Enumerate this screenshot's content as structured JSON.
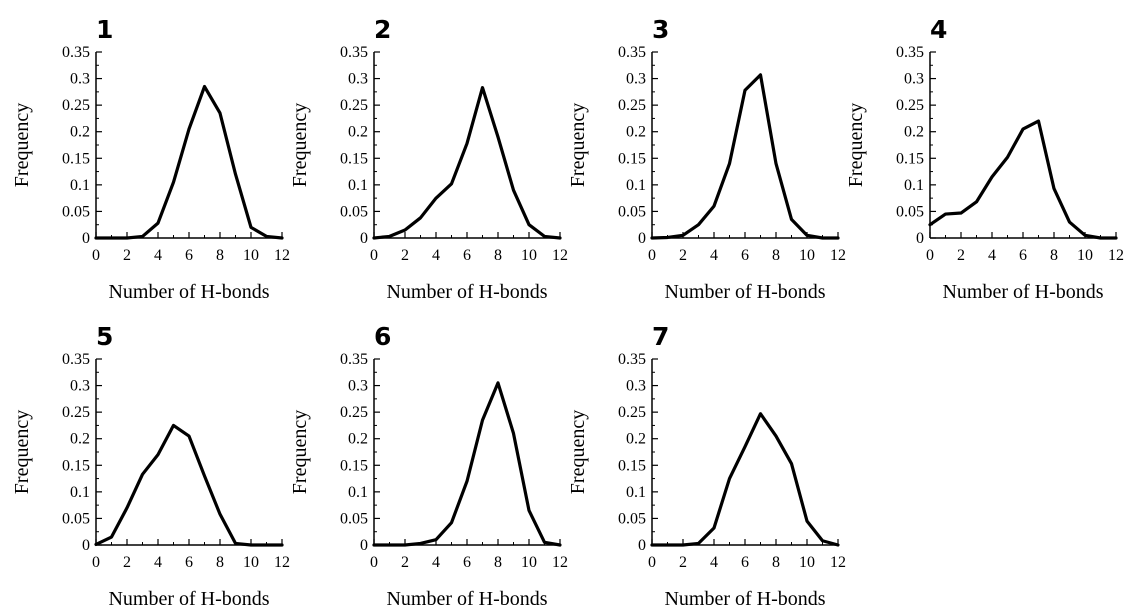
{
  "colors": {
    "line": "#000000",
    "axis": "#000000",
    "background": "#ffffff"
  },
  "chart_data": [
    {
      "type": "line",
      "title": "1",
      "xlabel": "Number of H-bonds",
      "ylabel": "Frequency",
      "xlim": [
        0,
        12
      ],
      "ylim": [
        0,
        0.35
      ],
      "xticks": [
        "0",
        "2",
        "4",
        "6",
        "8",
        "10",
        "12"
      ],
      "yticks": [
        "0",
        "0.05",
        "0.1",
        "0.15",
        "0.2",
        "0.25",
        "0.3",
        "0.35"
      ],
      "x": [
        0,
        1,
        2,
        3,
        4,
        5,
        6,
        7,
        8,
        9,
        10,
        11,
        12
      ],
      "y": [
        0,
        0,
        0,
        0.003,
        0.028,
        0.105,
        0.205,
        0.285,
        0.235,
        0.12,
        0.02,
        0.003,
        0
      ]
    },
    {
      "type": "line",
      "title": "2",
      "xlabel": "Number of H-bonds",
      "ylabel": "Frequency",
      "xlim": [
        0,
        12
      ],
      "ylim": [
        0,
        0.35
      ],
      "xticks": [
        "0",
        "2",
        "4",
        "6",
        "8",
        "10",
        "12"
      ],
      "yticks": [
        "0",
        "0.05",
        "0.1",
        "0.15",
        "0.2",
        "0.25",
        "0.3",
        "0.35"
      ],
      "x": [
        0,
        1,
        2,
        3,
        4,
        5,
        6,
        7,
        8,
        9,
        10,
        11,
        12
      ],
      "y": [
        0,
        0.003,
        0.015,
        0.038,
        0.075,
        0.102,
        0.178,
        0.283,
        0.19,
        0.09,
        0.025,
        0.003,
        0
      ]
    },
    {
      "type": "line",
      "title": "3",
      "xlabel": "Number of H-bonds",
      "ylabel": "Frequency",
      "xlim": [
        0,
        12
      ],
      "ylim": [
        0,
        0.35
      ],
      "xticks": [
        "0",
        "2",
        "4",
        "6",
        "8",
        "10",
        "12"
      ],
      "yticks": [
        "0",
        "0.05",
        "0.1",
        "0.15",
        "0.2",
        "0.25",
        "0.3",
        "0.35"
      ],
      "x": [
        0,
        1,
        2,
        3,
        4,
        5,
        6,
        7,
        8,
        9,
        10,
        11,
        12
      ],
      "y": [
        0,
        0.001,
        0.005,
        0.025,
        0.06,
        0.14,
        0.278,
        0.307,
        0.14,
        0.035,
        0.005,
        0,
        0
      ]
    },
    {
      "type": "line",
      "title": "4",
      "xlabel": "Number of H-bonds",
      "ylabel": "Frequency",
      "xlim": [
        0,
        12
      ],
      "ylim": [
        0,
        0.35
      ],
      "xticks": [
        "0",
        "2",
        "4",
        "6",
        "8",
        "10",
        "12"
      ],
      "yticks": [
        "0",
        "0.05",
        "0.1",
        "0.15",
        "0.2",
        "0.25",
        "0.3",
        "0.35"
      ],
      "x": [
        0,
        1,
        2,
        3,
        4,
        5,
        6,
        7,
        8,
        9,
        10,
        11,
        12
      ],
      "y": [
        0.025,
        0.045,
        0.047,
        0.068,
        0.115,
        0.152,
        0.205,
        0.22,
        0.093,
        0.03,
        0.005,
        0,
        0
      ]
    },
    {
      "type": "line",
      "title": "5",
      "xlabel": "Number of H-bonds",
      "ylabel": "Frequency",
      "xlim": [
        0,
        12
      ],
      "ylim": [
        0,
        0.35
      ],
      "xticks": [
        "0",
        "2",
        "4",
        "6",
        "8",
        "10",
        "12"
      ],
      "yticks": [
        "0",
        "0.05",
        "0.1",
        "0.15",
        "0.2",
        "0.25",
        "0.3",
        "0.35"
      ],
      "x": [
        0,
        1,
        2,
        3,
        4,
        5,
        6,
        7,
        8,
        9,
        10,
        11,
        12
      ],
      "y": [
        0.001,
        0.015,
        0.07,
        0.133,
        0.17,
        0.225,
        0.205,
        0.13,
        0.058,
        0.003,
        0,
        0,
        0
      ]
    },
    {
      "type": "line",
      "title": "6",
      "xlabel": "Number of H-bonds",
      "ylabel": "Frequency",
      "xlim": [
        0,
        12
      ],
      "ylim": [
        0,
        0.35
      ],
      "xticks": [
        "0",
        "2",
        "4",
        "6",
        "8",
        "10",
        "12"
      ],
      "yticks": [
        "0",
        "0.05",
        "0.1",
        "0.15",
        "0.2",
        "0.25",
        "0.3",
        "0.35"
      ],
      "x": [
        0,
        1,
        2,
        3,
        4,
        5,
        6,
        7,
        8,
        9,
        10,
        11,
        12
      ],
      "y": [
        0,
        0,
        0,
        0.003,
        0.01,
        0.042,
        0.12,
        0.235,
        0.305,
        0.21,
        0.065,
        0.005,
        0
      ]
    },
    {
      "type": "line",
      "title": "7",
      "xlabel": "Number of H-bonds",
      "ylabel": "Frequency",
      "xlim": [
        0,
        12
      ],
      "ylim": [
        0,
        0.35
      ],
      "xticks": [
        "0",
        "2",
        "4",
        "6",
        "8",
        "10",
        "12"
      ],
      "yticks": [
        "0",
        "0.05",
        "0.1",
        "0.15",
        "0.2",
        "0.25",
        "0.3",
        "0.35"
      ],
      "x": [
        0,
        1,
        2,
        3,
        4,
        5,
        6,
        7,
        8,
        9,
        10,
        11,
        12
      ],
      "y": [
        0,
        0,
        0,
        0.003,
        0.032,
        0.125,
        0.185,
        0.247,
        0.205,
        0.153,
        0.045,
        0.008,
        0
      ]
    }
  ]
}
